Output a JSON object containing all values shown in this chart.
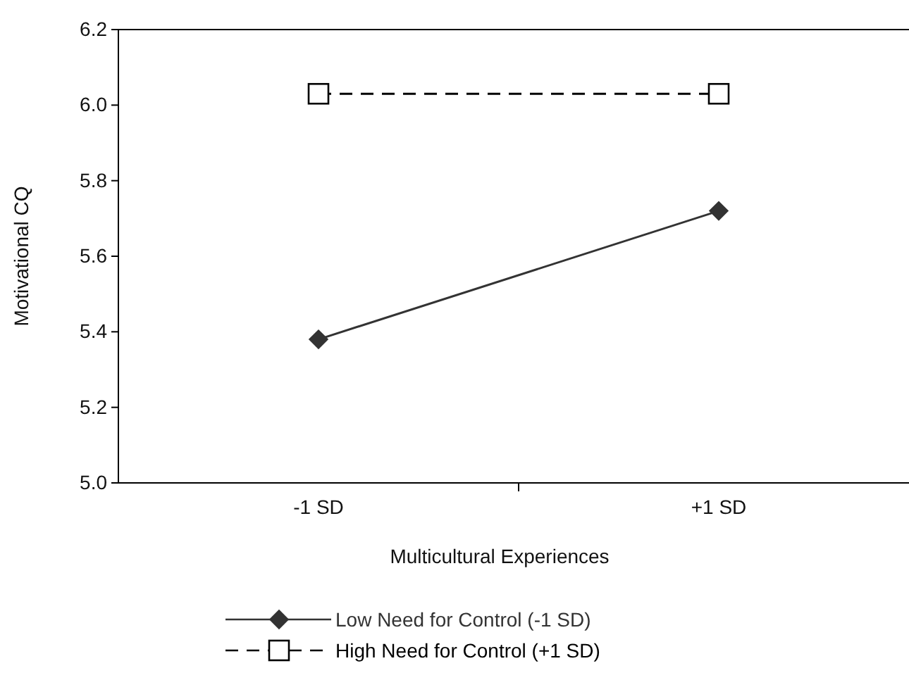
{
  "chart_data": {
    "type": "line",
    "xlabel": "Multicultural Experiences",
    "ylabel": "Motivational CQ",
    "categories": [
      "-1 SD",
      "+1 SD"
    ],
    "series": [
      {
        "name": "Low Need for Control (-1 SD)",
        "color": "#333333",
        "values": [
          5.38,
          5.72
        ],
        "marker": "diamond",
        "line_style": "solid"
      },
      {
        "name": "High Need for Control (+1 SD)",
        "color": "#000000",
        "values": [
          6.03,
          6.03
        ],
        "marker": "square",
        "line_style": "dashed"
      }
    ],
    "ylim": [
      5.0,
      6.2
    ],
    "yticks": [
      {
        "value": 5.0,
        "label": "5.0"
      },
      5.2,
      5.4,
      5.6,
      5.8,
      {
        "value": 6.0,
        "label": "6.0"
      },
      6.2
    ],
    "grid": false,
    "legend": "bottom"
  }
}
